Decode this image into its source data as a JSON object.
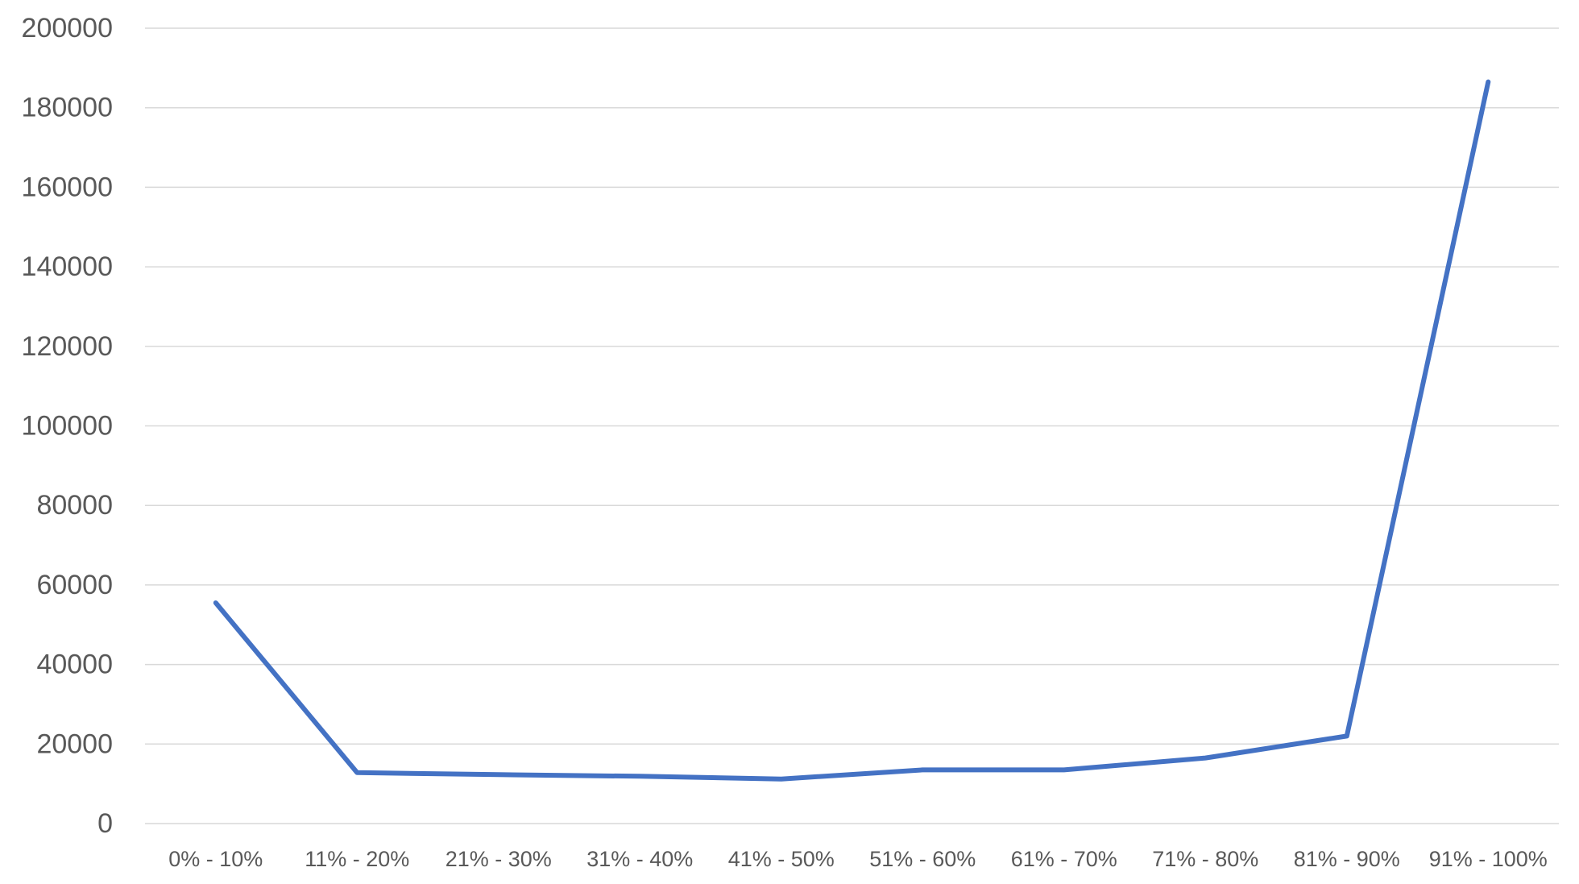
{
  "chart_data": {
    "type": "line",
    "title": "",
    "xlabel": "",
    "ylabel": "",
    "categories": [
      "0% - 10%",
      "11% - 20%",
      "21% - 30%",
      "31% - 40%",
      "41% - 50%",
      "51% - 60%",
      "61% - 70%",
      "71% - 80%",
      "81% - 90%",
      "91% - 100%"
    ],
    "series": [
      {
        "values": [
          55500,
          12800,
          12300,
          11900,
          11200,
          13500,
          13500,
          16500,
          22000,
          186500
        ],
        "color": "#4472c4"
      }
    ],
    "ylim": [
      0,
      200000
    ],
    "yticks": [
      "0",
      "20000",
      "40000",
      "60000",
      "80000",
      "100000",
      "120000",
      "140000",
      "160000",
      "180000",
      "200000"
    ],
    "grid": true,
    "legend": "none"
  }
}
